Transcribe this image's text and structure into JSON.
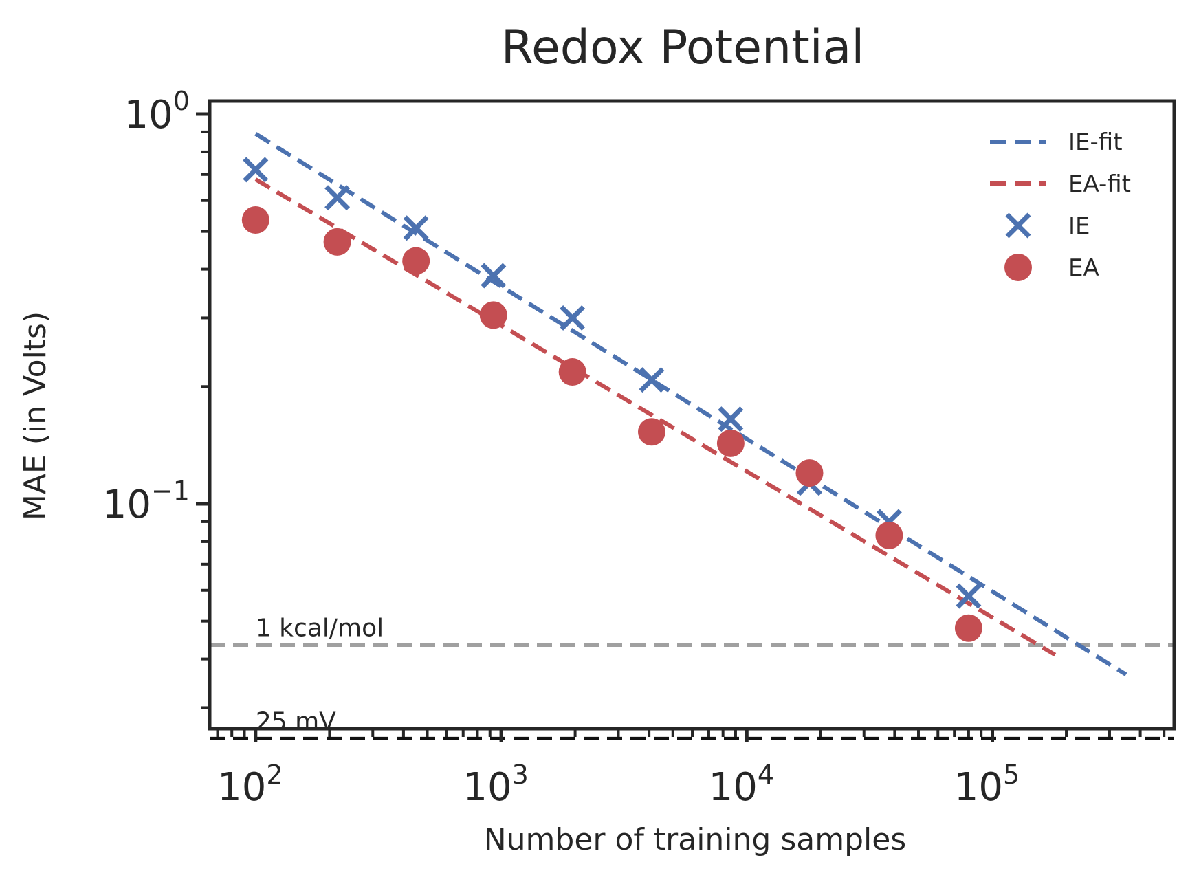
{
  "chart_data": {
    "type": "scatter",
    "title": "Redox Potential",
    "xlabel": "Number of training samples",
    "ylabel": "MAE (in Volts)",
    "xscale": "log",
    "yscale": "log",
    "xlim": [
      65,
      550000
    ],
    "ylim": [
      0.0265,
      1.08
    ],
    "x_ticks": [
      {
        "base": "10",
        "exp": "2",
        "value": 100
      },
      {
        "base": "10",
        "exp": "3",
        "value": 1000
      },
      {
        "base": "10",
        "exp": "4",
        "value": 10000
      },
      {
        "base": "10",
        "exp": "5",
        "value": 100000
      }
    ],
    "y_ticks": [
      {
        "base": "10",
        "exp": "0",
        "value": 1
      },
      {
        "base": "10",
        "exp": "−1",
        "value": 0.1
      }
    ],
    "series": [
      {
        "name": "IE",
        "marker": "x",
        "color": "#4c72b0",
        "x": [
          100,
          215,
          450,
          930,
          1950,
          4100,
          8600,
          18000,
          38000,
          80000
        ],
        "y": [
          0.72,
          0.61,
          0.51,
          0.385,
          0.3,
          0.208,
          0.165,
          0.113,
          0.09,
          0.058
        ]
      },
      {
        "name": "EA",
        "marker": "o",
        "color": "#c44e52",
        "x": [
          100,
          215,
          450,
          930,
          1950,
          4100,
          8600,
          18000,
          38000,
          80000
        ],
        "y": [
          0.535,
          0.47,
          0.42,
          0.305,
          0.218,
          0.153,
          0.143,
          0.12,
          0.083,
          0.048
        ]
      }
    ],
    "fits": [
      {
        "name": "IE-fit",
        "color": "#4c72b0",
        "style": "dashed",
        "x": [
          100,
          350000
        ],
        "y": [
          0.89,
          0.0365
        ]
      },
      {
        "name": "EA-fit",
        "color": "#c44e52",
        "style": "dashed",
        "x": [
          100,
          180000
        ],
        "y": [
          0.68,
          0.041
        ]
      }
    ],
    "reference_lines": [
      {
        "label": "1 kcal/mol",
        "y": 0.0434,
        "color": "#a0a0a0",
        "style": "dashed"
      },
      {
        "label": "25 mV",
        "y": 0.025,
        "color": "#111111",
        "style": "dashed"
      }
    ],
    "legend": {
      "position": "top-right",
      "entries": [
        "IE-fit",
        "EA-fit",
        "IE",
        "EA"
      ]
    },
    "grid": false
  }
}
